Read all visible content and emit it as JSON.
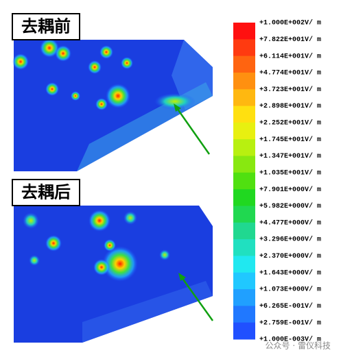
{
  "panels": [
    {
      "title": "去耦前"
    },
    {
      "title": "去耦后"
    }
  ],
  "legend": {
    "labels": [
      "+1.000E+002V/ m",
      "+7.822E+001V/ m",
      "+6.114E+001V/ m",
      "+4.774E+001V/ m",
      "+3.723E+001V/ m",
      "+2.898E+001V/ m",
      "+2.252E+001V/ m",
      "+1.745E+001V/ m",
      "+1.347E+001V/ m",
      "+1.035E+001V/ m",
      "+7.901E+000V/ m",
      "+5.982E+000V/ m",
      "+4.477E+000V/ m",
      "+3.296E+000V/ m",
      "+2.370E+000V/ m",
      "+1.643E+000V/ m",
      "+1.073E+000V/ m",
      "+6.265E-001V/ m",
      "+2.759E-001V/ m",
      "+1.000E-003V/ m"
    ]
  },
  "watermark": "公众号 · 雷仪科技"
}
